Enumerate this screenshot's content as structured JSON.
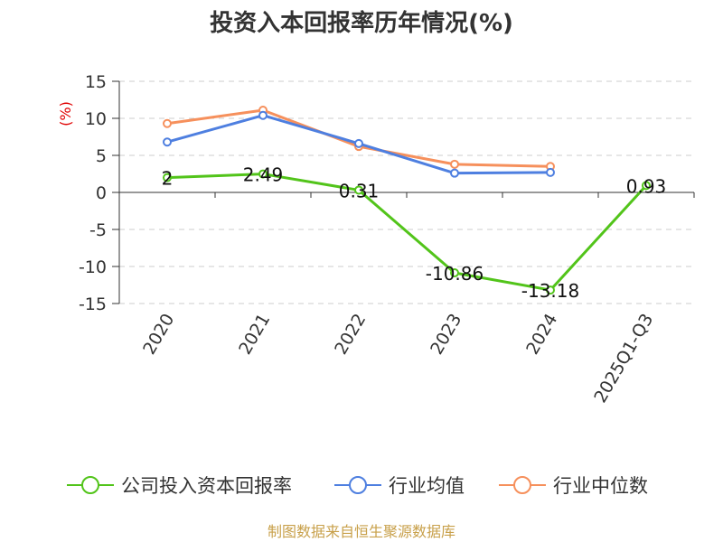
{
  "chart_data": {
    "type": "line",
    "title": "投资入本回报率历年情况(%)",
    "ylabel": "(%)",
    "categories": [
      "2020",
      "2021",
      "2022",
      "2023",
      "2024",
      "2025Q1-Q3"
    ],
    "ylim": [
      -15,
      15
    ],
    "yticks": [
      15,
      10,
      5,
      0,
      -5,
      -10,
      -15
    ],
    "grid": true,
    "legend_position": "bottom",
    "series": [
      {
        "name": "公司投入资本回报率",
        "color": "#52c41a",
        "values": [
          2,
          2.49,
          0.31,
          -10.86,
          -13.18,
          0.93
        ],
        "labels": [
          "2",
          "2.49",
          "0.31",
          "-10.86",
          "-13.18",
          "0.93"
        ]
      },
      {
        "name": "行业均值",
        "color": "#4e7fe0",
        "values": [
          6.8,
          10.4,
          6.6,
          2.6,
          2.7,
          null
        ]
      },
      {
        "name": "行业中位数",
        "color": "#f6905c",
        "values": [
          9.3,
          11.1,
          6.2,
          3.8,
          3.5,
          null
        ]
      }
    ]
  },
  "source": "制图数据来自恒生聚源数据库"
}
